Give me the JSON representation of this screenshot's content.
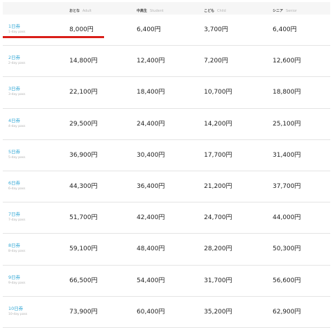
{
  "header": {
    "columns": [
      {
        "jp": "おとな",
        "en": "Adult"
      },
      {
        "jp": "中高生",
        "en": "Student"
      },
      {
        "jp": "こども",
        "en": "Child"
      },
      {
        "jp": "シニア",
        "en": "Senior"
      }
    ]
  },
  "rows": [
    {
      "label_jp": "1日券",
      "label_en": "1-day pass",
      "prices": [
        "8,000円",
        "6,400円",
        "3,700円",
        "6,400円"
      ]
    },
    {
      "label_jp": "2日券",
      "label_en": "2-day pass",
      "prices": [
        "14,800円",
        "12,400円",
        "7,200円",
        "12,600円"
      ]
    },
    {
      "label_jp": "3日券",
      "label_en": "3-day pass",
      "prices": [
        "22,100円",
        "18,400円",
        "10,700円",
        "18,800円"
      ]
    },
    {
      "label_jp": "4日券",
      "label_en": "4-day pass",
      "prices": [
        "29,500円",
        "24,400円",
        "14,200円",
        "25,100円"
      ]
    },
    {
      "label_jp": "5日券",
      "label_en": "5-day pass",
      "prices": [
        "36,900円",
        "30,400円",
        "17,700円",
        "31,400円"
      ]
    },
    {
      "label_jp": "6日券",
      "label_en": "6-day pass",
      "prices": [
        "44,300円",
        "36,400円",
        "21,200円",
        "37,700円"
      ]
    },
    {
      "label_jp": "7日券",
      "label_en": "7-day pass",
      "prices": [
        "51,700円",
        "42,400円",
        "24,700円",
        "44,000円"
      ]
    },
    {
      "label_jp": "8日券",
      "label_en": "8-day pass",
      "prices": [
        "59,100円",
        "48,400円",
        "28,200円",
        "50,300円"
      ]
    },
    {
      "label_jp": "9日券",
      "label_en": "9-day pass",
      "prices": [
        "66,500円",
        "54,400円",
        "31,700円",
        "56,600円"
      ]
    },
    {
      "label_jp": "10日券",
      "label_en": "10-day pass",
      "prices": [
        "73,900円",
        "60,400円",
        "35,200円",
        "62,900円"
      ]
    }
  ],
  "colors": {
    "label_link": "#35a8d6",
    "accent_underline": "#d91e18",
    "header_bg": "#f6f6f6"
  }
}
